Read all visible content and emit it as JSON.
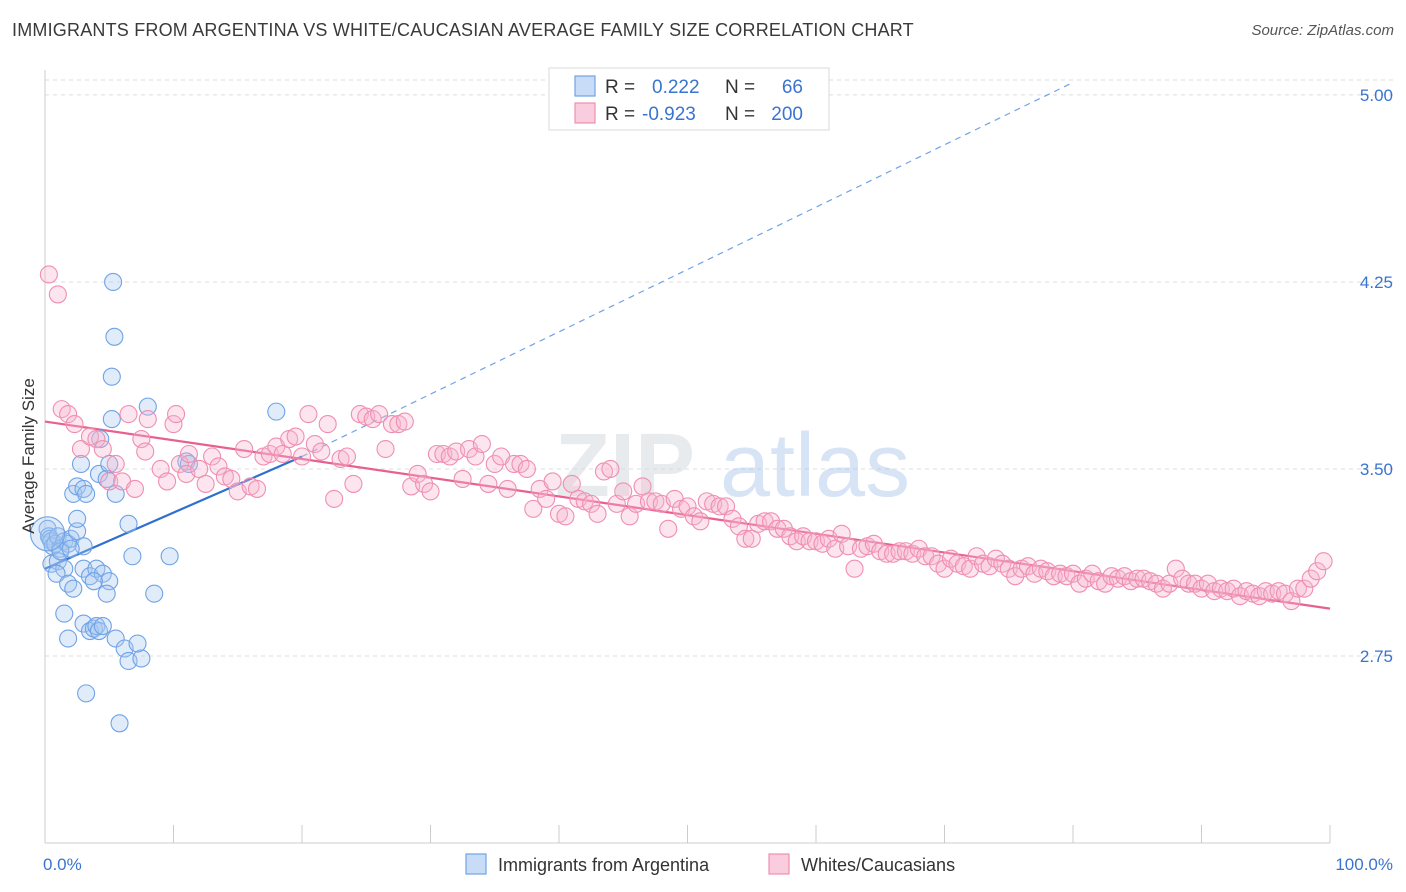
{
  "title": "IMMIGRANTS FROM ARGENTINA VS WHITE/CAUCASIAN AVERAGE FAMILY SIZE CORRELATION CHART",
  "source": "Source: ZipAtlas.com",
  "watermark": {
    "zip": "ZIP",
    "atlas": "atlas"
  },
  "colors": {
    "blue": "#6fa3e6",
    "blue_line": "#2f6fd0",
    "pink": "#ef8fb0",
    "pink_line": "#e8608f",
    "axis_text": "#3a74d0",
    "grid": "#dddddd"
  },
  "legend": {
    "rows": [
      {
        "r_label": "R =",
        "r_value": "0.222",
        "n_label": "N =",
        "n_value": "66",
        "color": "blue"
      },
      {
        "r_label": "R =",
        "r_value": "-0.923",
        "n_label": "N =",
        "n_value": "200",
        "color": "pink"
      }
    ]
  },
  "chart_data": {
    "type": "scatter",
    "title": "IMMIGRANTS FROM ARGENTINA VS WHITE/CAUCASIAN AVERAGE FAMILY SIZE CORRELATION CHART",
    "xlabel": "",
    "ylabel": "Average Family Size",
    "xlim": [
      0,
      100
    ],
    "ylim": [
      2.0,
      5.1
    ],
    "x_tick_labels": [
      "0.0%",
      "100.0%"
    ],
    "y_ticks": [
      2.75,
      3.5,
      4.25,
      5.0
    ],
    "y_tick_labels": [
      "2.75",
      "3.50",
      "4.25",
      "5.00"
    ],
    "grid": true,
    "legend_position": "top-center",
    "series": [
      {
        "name": "Immigrants from Argentina",
        "color": "blue",
        "trend": {
          "x0": 0,
          "y0": 3.1,
          "x1": 20,
          "y1": 3.55,
          "extend_to_x": 80,
          "extend_y": 5.05
        },
        "points": [
          [
            0.2,
            3.26
          ],
          [
            0.3,
            3.23
          ],
          [
            0.4,
            3.22
          ],
          [
            0.5,
            3.21
          ],
          [
            0.6,
            3.19
          ],
          [
            0.8,
            3.2
          ],
          [
            1.0,
            3.23
          ],
          [
            1.2,
            3.18
          ],
          [
            1.5,
            3.21
          ],
          [
            1.8,
            3.2
          ],
          [
            0.5,
            3.12
          ],
          [
            1.0,
            3.13
          ],
          [
            1.5,
            3.1
          ],
          [
            2.0,
            3.22
          ],
          [
            2.5,
            3.25
          ],
          [
            3.0,
            3.19
          ],
          [
            0.9,
            3.08
          ],
          [
            1.8,
            3.04
          ],
          [
            2.2,
            3.02
          ],
          [
            3.0,
            3.1
          ],
          [
            3.5,
            3.07
          ],
          [
            4.0,
            3.1
          ],
          [
            4.5,
            3.08
          ],
          [
            5.0,
            3.05
          ],
          [
            4.8,
            3.0
          ],
          [
            2.5,
            3.3
          ],
          [
            2.2,
            3.4
          ],
          [
            2.5,
            3.43
          ],
          [
            3.0,
            3.42
          ],
          [
            3.2,
            3.4
          ],
          [
            2.8,
            3.52
          ],
          [
            4.2,
            3.48
          ],
          [
            4.8,
            3.46
          ],
          [
            5.0,
            3.52
          ],
          [
            4.3,
            3.62
          ],
          [
            5.5,
            3.4
          ],
          [
            5.2,
            3.7
          ],
          [
            6.5,
            3.28
          ],
          [
            6.8,
            3.15
          ],
          [
            8.0,
            3.75
          ],
          [
            8.5,
            3.0
          ],
          [
            9.7,
            3.15
          ],
          [
            11.0,
            3.53
          ],
          [
            11.2,
            3.52
          ],
          [
            1.5,
            2.92
          ],
          [
            1.8,
            2.82
          ],
          [
            3.0,
            2.88
          ],
          [
            3.5,
            2.85
          ],
          [
            3.8,
            2.86
          ],
          [
            4.0,
            2.87
          ],
          [
            4.2,
            2.85
          ],
          [
            4.5,
            2.87
          ],
          [
            5.5,
            2.82
          ],
          [
            6.2,
            2.78
          ],
          [
            6.5,
            2.73
          ],
          [
            7.5,
            2.74
          ],
          [
            7.2,
            2.8
          ],
          [
            3.2,
            2.6
          ],
          [
            5.8,
            2.48
          ],
          [
            5.2,
            3.87
          ],
          [
            5.3,
            4.25
          ],
          [
            5.4,
            4.03
          ],
          [
            18.0,
            3.73
          ],
          [
            1.2,
            3.17
          ],
          [
            2.0,
            3.18
          ],
          [
            3.8,
            3.05
          ]
        ]
      },
      {
        "name": "Whites/Caucasians",
        "color": "pink",
        "trend": {
          "x0": 0,
          "y0": 3.69,
          "x1": 100,
          "y1": 2.94
        },
        "points": [
          [
            0.3,
            4.28
          ],
          [
            1.0,
            4.2
          ],
          [
            1.3,
            3.74
          ],
          [
            1.8,
            3.72
          ],
          [
            2.3,
            3.68
          ],
          [
            2.8,
            3.58
          ],
          [
            3.5,
            3.63
          ],
          [
            4.0,
            3.62
          ],
          [
            4.5,
            3.58
          ],
          [
            5.0,
            3.45
          ],
          [
            5.5,
            3.52
          ],
          [
            6.0,
            3.45
          ],
          [
            6.5,
            3.72
          ],
          [
            7.0,
            3.42
          ],
          [
            7.5,
            3.62
          ],
          [
            7.8,
            3.57
          ],
          [
            8.0,
            3.7
          ],
          [
            9.0,
            3.5
          ],
          [
            9.5,
            3.45
          ],
          [
            10.0,
            3.68
          ],
          [
            10.2,
            3.72
          ],
          [
            10.5,
            3.52
          ],
          [
            11.0,
            3.48
          ],
          [
            11.2,
            3.56
          ],
          [
            12.0,
            3.5
          ],
          [
            12.5,
            3.44
          ],
          [
            13.0,
            3.55
          ],
          [
            13.5,
            3.51
          ],
          [
            14.0,
            3.47
          ],
          [
            14.5,
            3.46
          ],
          [
            15.0,
            3.41
          ],
          [
            15.5,
            3.58
          ],
          [
            16.0,
            3.43
          ],
          [
            16.5,
            3.42
          ],
          [
            17.0,
            3.55
          ],
          [
            17.5,
            3.56
          ],
          [
            18.0,
            3.59
          ],
          [
            18.5,
            3.56
          ],
          [
            19.0,
            3.62
          ],
          [
            19.5,
            3.63
          ],
          [
            20.0,
            3.55
          ],
          [
            20.5,
            3.72
          ],
          [
            21.0,
            3.6
          ],
          [
            21.5,
            3.57
          ],
          [
            22.0,
            3.68
          ],
          [
            22.5,
            3.38
          ],
          [
            23.0,
            3.54
          ],
          [
            23.5,
            3.55
          ],
          [
            24.0,
            3.44
          ],
          [
            24.5,
            3.72
          ],
          [
            25.0,
            3.71
          ],
          [
            25.5,
            3.7
          ],
          [
            26.0,
            3.72
          ],
          [
            26.5,
            3.58
          ],
          [
            27.0,
            3.68
          ],
          [
            27.5,
            3.68
          ],
          [
            28.0,
            3.69
          ],
          [
            28.5,
            3.43
          ],
          [
            29.0,
            3.48
          ],
          [
            29.5,
            3.44
          ],
          [
            30.0,
            3.41
          ],
          [
            30.5,
            3.56
          ],
          [
            31.0,
            3.56
          ],
          [
            31.5,
            3.55
          ],
          [
            32.0,
            3.57
          ],
          [
            32.5,
            3.46
          ],
          [
            33.0,
            3.58
          ],
          [
            33.5,
            3.55
          ],
          [
            34.0,
            3.6
          ],
          [
            34.5,
            3.44
          ],
          [
            35.0,
            3.52
          ],
          [
            35.5,
            3.55
          ],
          [
            36.0,
            3.42
          ],
          [
            36.5,
            3.52
          ],
          [
            37.0,
            3.52
          ],
          [
            37.5,
            3.5
          ],
          [
            38.0,
            3.34
          ],
          [
            38.5,
            3.42
          ],
          [
            39.0,
            3.38
          ],
          [
            39.5,
            3.45
          ],
          [
            40.0,
            3.32
          ],
          [
            40.5,
            3.31
          ],
          [
            41.0,
            3.44
          ],
          [
            41.5,
            3.38
          ],
          [
            42.0,
            3.37
          ],
          [
            42.5,
            3.36
          ],
          [
            43.0,
            3.32
          ],
          [
            43.5,
            3.49
          ],
          [
            44.0,
            3.5
          ],
          [
            44.5,
            3.36
          ],
          [
            45.0,
            3.41
          ],
          [
            45.5,
            3.31
          ],
          [
            46.0,
            3.36
          ],
          [
            46.5,
            3.43
          ],
          [
            47.0,
            3.37
          ],
          [
            47.5,
            3.37
          ],
          [
            48.0,
            3.36
          ],
          [
            48.5,
            3.26
          ],
          [
            49.0,
            3.38
          ],
          [
            49.5,
            3.34
          ],
          [
            50.0,
            3.35
          ],
          [
            50.5,
            3.31
          ],
          [
            51.0,
            3.29
          ],
          [
            51.5,
            3.37
          ],
          [
            52.0,
            3.36
          ],
          [
            52.5,
            3.35
          ],
          [
            53.0,
            3.35
          ],
          [
            53.5,
            3.3
          ],
          [
            54.0,
            3.27
          ],
          [
            54.5,
            3.22
          ],
          [
            55.0,
            3.22
          ],
          [
            55.5,
            3.28
          ],
          [
            56.0,
            3.29
          ],
          [
            56.5,
            3.29
          ],
          [
            57.0,
            3.26
          ],
          [
            57.5,
            3.26
          ],
          [
            58.0,
            3.23
          ],
          [
            58.5,
            3.21
          ],
          [
            59.0,
            3.23
          ],
          [
            59.5,
            3.21
          ],
          [
            60.0,
            3.21
          ],
          [
            60.5,
            3.2
          ],
          [
            61.0,
            3.22
          ],
          [
            61.5,
            3.18
          ],
          [
            62.0,
            3.24
          ],
          [
            62.5,
            3.19
          ],
          [
            63.0,
            3.1
          ],
          [
            63.5,
            3.18
          ],
          [
            64.0,
            3.19
          ],
          [
            64.5,
            3.2
          ],
          [
            65.0,
            3.17
          ],
          [
            65.5,
            3.16
          ],
          [
            66.0,
            3.16
          ],
          [
            66.5,
            3.17
          ],
          [
            67.0,
            3.17
          ],
          [
            67.5,
            3.16
          ],
          [
            68.0,
            3.18
          ],
          [
            68.5,
            3.15
          ],
          [
            69.0,
            3.15
          ],
          [
            69.5,
            3.12
          ],
          [
            70.0,
            3.1
          ],
          [
            70.5,
            3.14
          ],
          [
            71.0,
            3.12
          ],
          [
            71.5,
            3.11
          ],
          [
            72.0,
            3.1
          ],
          [
            72.5,
            3.15
          ],
          [
            73.0,
            3.12
          ],
          [
            73.5,
            3.11
          ],
          [
            74.0,
            3.14
          ],
          [
            74.5,
            3.12
          ],
          [
            75.0,
            3.1
          ],
          [
            75.5,
            3.07
          ],
          [
            76.0,
            3.1
          ],
          [
            76.5,
            3.11
          ],
          [
            77.0,
            3.08
          ],
          [
            77.5,
            3.1
          ],
          [
            78.0,
            3.09
          ],
          [
            78.5,
            3.07
          ],
          [
            79.0,
            3.08
          ],
          [
            79.5,
            3.07
          ],
          [
            80.0,
            3.08
          ],
          [
            80.5,
            3.04
          ],
          [
            81.0,
            3.06
          ],
          [
            81.5,
            3.08
          ],
          [
            82.0,
            3.05
          ],
          [
            82.5,
            3.04
          ],
          [
            83.0,
            3.07
          ],
          [
            83.5,
            3.06
          ],
          [
            84.0,
            3.07
          ],
          [
            84.5,
            3.05
          ],
          [
            85.0,
            3.06
          ],
          [
            85.5,
            3.06
          ],
          [
            86.0,
            3.05
          ],
          [
            86.5,
            3.04
          ],
          [
            87.0,
            3.02
          ],
          [
            87.5,
            3.04
          ],
          [
            88.0,
            3.1
          ],
          [
            88.5,
            3.06
          ],
          [
            89.0,
            3.04
          ],
          [
            89.5,
            3.04
          ],
          [
            90.0,
            3.02
          ],
          [
            90.5,
            3.04
          ],
          [
            91.0,
            3.01
          ],
          [
            91.5,
            3.02
          ],
          [
            92.0,
            3.01
          ],
          [
            92.5,
            3.02
          ],
          [
            93.0,
            2.99
          ],
          [
            93.5,
            3.01
          ],
          [
            94.0,
            3.0
          ],
          [
            94.5,
            2.99
          ],
          [
            95.0,
            3.01
          ],
          [
            95.5,
            3.0
          ],
          [
            96.0,
            3.01
          ],
          [
            96.5,
            3.0
          ],
          [
            97.0,
            2.97
          ],
          [
            97.5,
            3.02
          ],
          [
            98.0,
            3.02
          ],
          [
            98.5,
            3.06
          ],
          [
            99.0,
            3.09
          ],
          [
            99.5,
            3.13
          ]
        ]
      }
    ]
  }
}
